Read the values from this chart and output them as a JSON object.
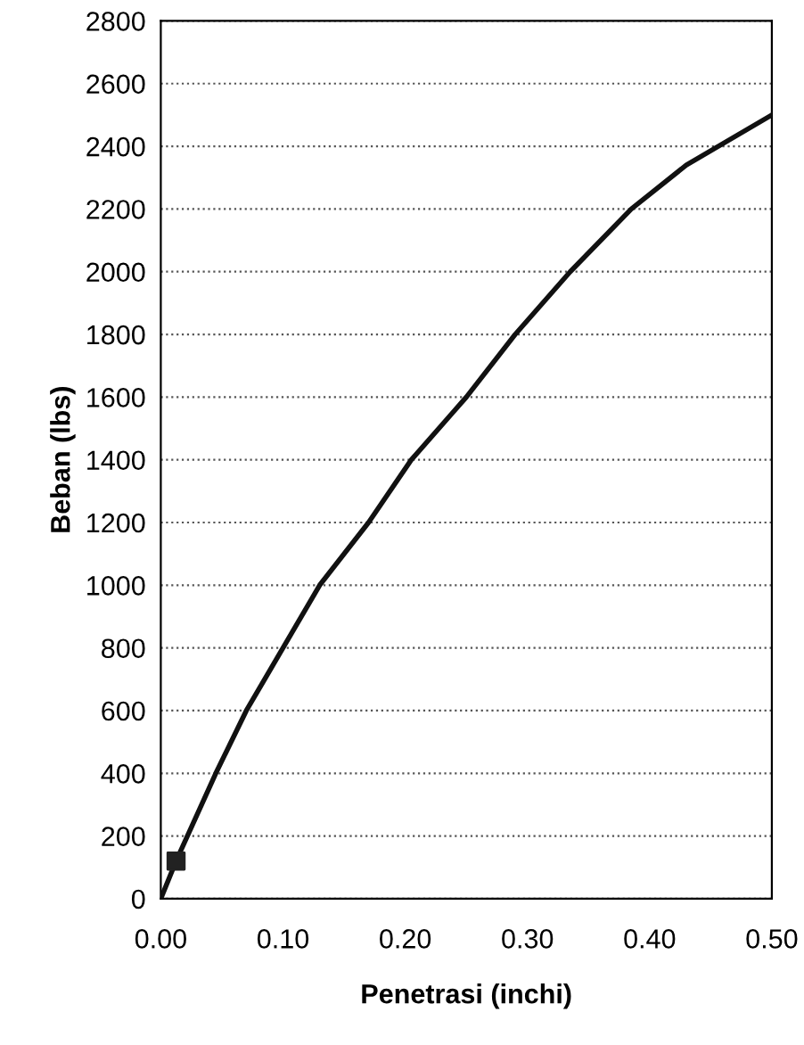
{
  "chart_data": {
    "type": "line",
    "xlabel": "Penetrasi (inchi)",
    "ylabel": "Beban (lbs)",
    "series": [
      {
        "color": "#111111",
        "x": [
          0,
          0.0125,
          0.045,
          0.07,
          0.1,
          0.13,
          0.17,
          0.205,
          0.25,
          0.29,
          0.335,
          0.385,
          0.43,
          0.5
        ],
        "values": [
          0,
          120,
          400,
          600,
          800,
          1000,
          1200,
          1400,
          1600,
          1800,
          2000,
          2200,
          2340,
          2500
        ],
        "marker": "none",
        "line_style": "solid"
      },
      {
        "type": "scatter",
        "color": "#222222",
        "x": [
          0.0125
        ],
        "values": [
          120
        ],
        "marker": "square"
      }
    ],
    "xlim": [
      0,
      0.5
    ],
    "xticks": [
      {
        "value": 0,
        "label": "0.00"
      },
      {
        "value": 0.1,
        "label": "0.10"
      },
      {
        "value": 0.2,
        "label": "0.20"
      },
      {
        "value": 0.3,
        "label": "0.30"
      },
      {
        "value": 0.4,
        "label": "0.40"
      },
      {
        "value": 0.5,
        "label": "0.50"
      }
    ],
    "ylim": [
      0,
      2800
    ],
    "yticks": [
      0,
      200,
      400,
      600,
      800,
      1000,
      1200,
      1400,
      1600,
      1800,
      2000,
      2200,
      2400,
      2600,
      2800
    ],
    "grid": "y",
    "legend": false
  }
}
